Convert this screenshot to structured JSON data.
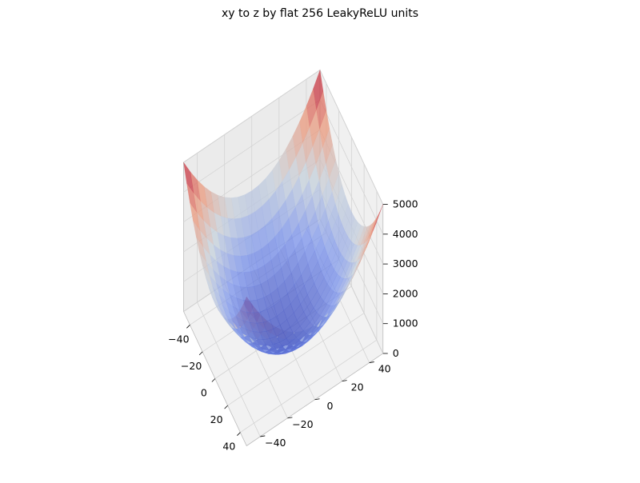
{
  "chart_data": {
    "type": "surface",
    "title": "xy to z by flat 256 LeakyReLU units",
    "xlabel": "",
    "ylabel": "",
    "zlabel": "",
    "x_range": [
      -50,
      50
    ],
    "y_range": [
      -50,
      50
    ],
    "z_range": [
      0,
      5000
    ],
    "x_ticks": [
      -40,
      -20,
      0,
      20,
      40
    ],
    "y_ticks": [
      -40,
      -20,
      0,
      20,
      40
    ],
    "z_ticks": [
      0,
      1000,
      2000,
      3000,
      4000,
      5000
    ],
    "x_tick_labels": [
      "−40",
      "−20",
      "0",
      "20",
      "40"
    ],
    "y_tick_labels": [
      "−40",
      "−20",
      "0",
      "20",
      "40"
    ],
    "z_tick_labels": [
      "0",
      "1000",
      "2000",
      "3000",
      "4000",
      "5000"
    ],
    "surface_function": "z = x^2 + y^2",
    "grid_samples": [
      -50,
      -45,
      -40,
      -35,
      -30,
      -25,
      -20,
      -15,
      -10,
      -5,
      0,
      5,
      10,
      15,
      20,
      25,
      30,
      35,
      40,
      45,
      50
    ],
    "colormap": "coolwarm",
    "surface_alpha": 0.75,
    "grid": true,
    "pane_color": "#f2f2f2",
    "grid_color": "#d4d4d4",
    "pane_edge_color": "#bcbcbc"
  }
}
